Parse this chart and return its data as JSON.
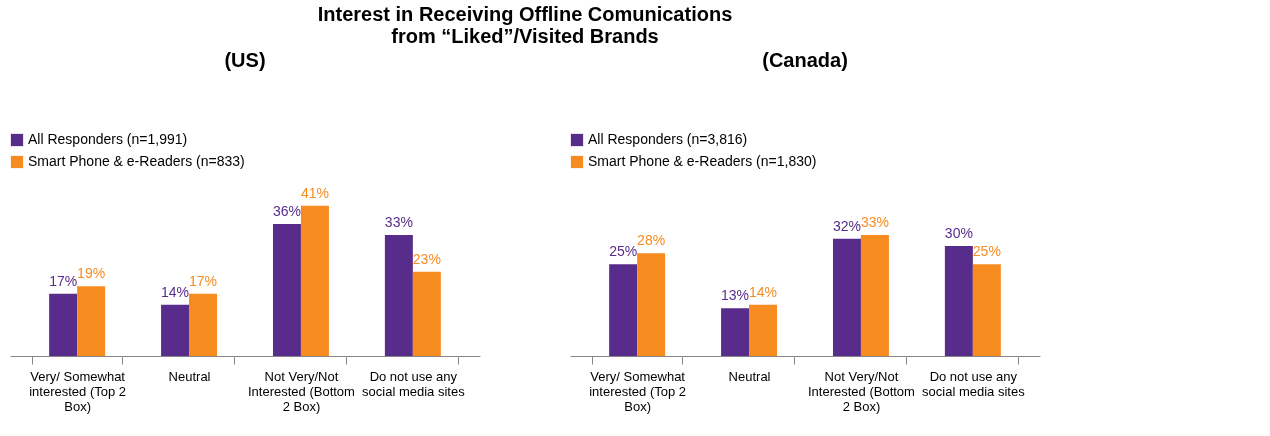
{
  "chart_data": [
    {
      "type": "bar",
      "title": "Interest in Receiving Offline Comunications\nfrom “Liked”/Visited Brands",
      "subtitle": "(US)",
      "categories": [
        "Very/ Somewhat interested (Top 2 Box)",
        "Neutral",
        "Not Very/Not Interested (Bottom 2 Box)",
        "Do not use any social media sites"
      ],
      "series": [
        {
          "name": "All Responders (n=1,991)",
          "color": "#582c8b",
          "values": [
            17,
            14,
            36,
            33
          ],
          "value_labels": [
            "17%",
            "14%",
            "36%",
            "33%"
          ]
        },
        {
          "name": "Smart Phone & e-Readers (n=833)",
          "color": "#f68b1f",
          "values": [
            19,
            17,
            41,
            23
          ],
          "value_labels": [
            "19%",
            "17%",
            "41%",
            "23%"
          ]
        }
      ],
      "legend": "top left",
      "grid": false
    },
    {
      "type": "bar",
      "title": "(Canada)",
      "categories": [
        "Very/ Somewhat interested (Top 2 Box)",
        "Neutral",
        "Not Very/Not Interested (Bottom 2 Box)",
        "Do not use any social media sites"
      ],
      "series": [
        {
          "name": "All Responders (n=3,816)",
          "color": "#582c8b",
          "values": [
            25,
            13,
            32,
            30
          ],
          "value_labels": [
            "25%",
            "13%",
            "32%",
            "30%"
          ]
        },
        {
          "name": "Smart Phone & e-Readers (n=1,830)",
          "color": "#f68b1f",
          "values": [
            28,
            14,
            33,
            25
          ],
          "value_labels": [
            "28%",
            "14%",
            "33%",
            "25%"
          ]
        }
      ],
      "legend": "top left",
      "grid": false
    }
  ]
}
